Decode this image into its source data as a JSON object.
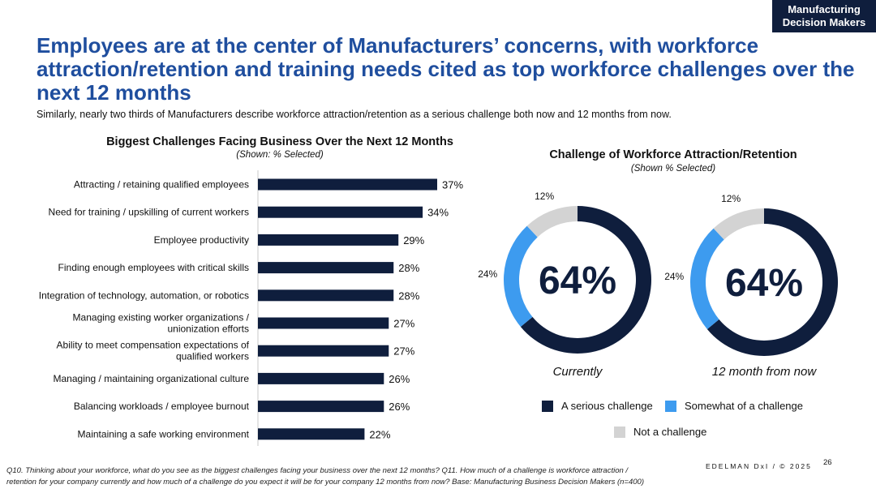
{
  "tag": {
    "line1": "Manufacturing",
    "line2": "Decision Makers"
  },
  "headline": "Employees are at the center of Manufacturers’ concerns, with workforce attraction/retention and training needs cited as top workforce challenges over the next 12 months",
  "subhead": "Similarly, nearly two thirds of Manufacturers describe workforce attraction/retention as a serious challenge both now and 12 months from now.",
  "colors": {
    "navy": "#0f1e3d",
    "blue": "#3d9bef",
    "grey": "#d3d3d3",
    "title_blue": "#1f4e9e"
  },
  "chart_data": [
    {
      "type": "bar",
      "orientation": "horizontal",
      "title": "Biggest Challenges Facing Business Over the Next 12 Months",
      "subtitle": "(Shown: % Selected)",
      "categories": [
        "Attracting / retaining qualified employees",
        "Need for training / upskilling of current workers",
        "Employee productivity",
        "Finding enough employees with critical skills",
        "Integration of technology, automation, or robotics",
        "Managing existing worker organizations / unionization efforts",
        "Ability to meet compensation expectations of qualified workers",
        "Managing / maintaining organizational culture",
        "Balancing workloads / employee burnout",
        "Maintaining a safe working environment"
      ],
      "category_lines": [
        [
          "Attracting / retaining qualified employees"
        ],
        [
          "Need for training / upskilling of current workers"
        ],
        [
          "Employee productivity"
        ],
        [
          "Finding enough employees with critical skills"
        ],
        [
          "Integration of technology, automation, or robotics"
        ],
        [
          "Managing existing worker organizations /",
          "unionization efforts"
        ],
        [
          "Ability to meet compensation expectations of",
          "qualified workers"
        ],
        [
          "Managing / maintaining organizational culture"
        ],
        [
          "Balancing workloads / employee burnout"
        ],
        [
          "Maintaining a safe working environment"
        ]
      ],
      "values": [
        37,
        34,
        29,
        28,
        28,
        27,
        27,
        26,
        26,
        22
      ],
      "labels": [
        "37%",
        "34%",
        "29%",
        "28%",
        "28%",
        "27%",
        "27%",
        "26%",
        "26%",
        "22%"
      ],
      "xlim": [
        0,
        40
      ]
    },
    {
      "type": "pie",
      "variant": "donut",
      "title": "Challenge of Workforce Attraction/Retention",
      "subtitle": "(Shown % Selected)",
      "legend": [
        "A serious challenge",
        "Somewhat of a challenge",
        "Not a challenge"
      ],
      "charts": [
        {
          "caption": "Currently",
          "center_label": "64%",
          "values": [
            64,
            24,
            12
          ],
          "slice_labels": [
            "64%",
            "24%",
            "12%"
          ]
        },
        {
          "caption": "12 month from now",
          "center_label": "64%",
          "values": [
            64,
            24,
            12
          ],
          "slice_labels": [
            "64%",
            "24%",
            "12%"
          ]
        }
      ]
    }
  ],
  "footnote": {
    "line1": "Q10. Thinking about your workforce, what do you see as the biggest challenges facing your business over the next 12 months? Q11. How much of a challenge is workforce attraction /",
    "line2": "retention for your company currently and how much of a challenge do you expect it will be for your company 12 months from now? Base: Manufacturing Business Decision Makers  (n=400)"
  },
  "brand": "EDELMAN DxI / © 2025",
  "page_number": "26"
}
